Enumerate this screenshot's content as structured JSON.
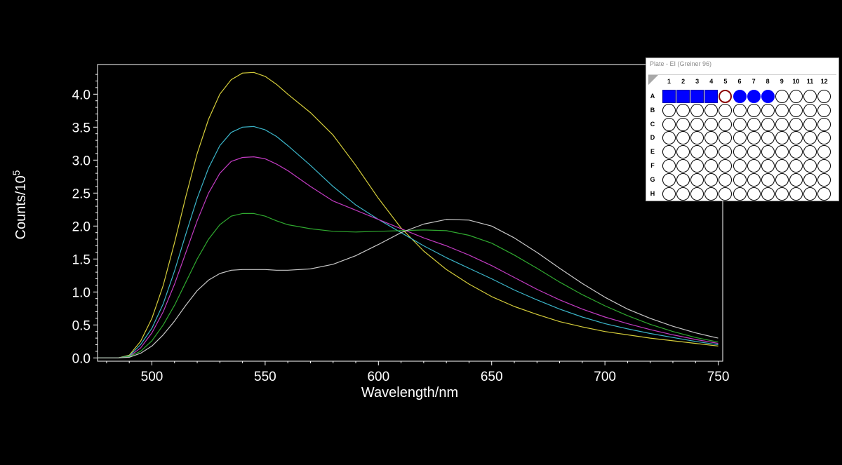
{
  "chart_data": {
    "type": "line",
    "title": "",
    "xlabel": "Wavelength/nm",
    "ylabel_base": "Counts/10",
    "ylabel_exp": "5",
    "xlim": [
      476,
      752
    ],
    "ylim": [
      -0.05,
      4.45
    ],
    "xticks": [
      500,
      550,
      600,
      650,
      700,
      750
    ],
    "yticks": [
      "0.0",
      "0.5",
      "1.0",
      "1.5",
      "2.0",
      "2.5",
      "3.0",
      "3.5",
      "4.0"
    ],
    "background": "#000000",
    "axis_color": "#ffffff",
    "grid": false,
    "series": [
      {
        "color": "#d4cc3a",
        "x": [
          480,
          485,
          490,
          495,
          500,
          505,
          510,
          515,
          520,
          525,
          530,
          535,
          540,
          545,
          550,
          555,
          560,
          570,
          580,
          590,
          600,
          610,
          620,
          630,
          640,
          650,
          660,
          670,
          680,
          690,
          700,
          710,
          720,
          730,
          740,
          750
        ],
        "y": [
          0,
          0,
          0.04,
          0.25,
          0.6,
          1.1,
          1.75,
          2.45,
          3.1,
          3.62,
          4.0,
          4.22,
          4.32,
          4.33,
          4.27,
          4.15,
          4.0,
          3.72,
          3.38,
          2.92,
          2.42,
          1.97,
          1.62,
          1.34,
          1.12,
          0.93,
          0.78,
          0.66,
          0.55,
          0.47,
          0.4,
          0.35,
          0.3,
          0.26,
          0.22,
          0.18
        ]
      },
      {
        "color": "#3bb5c9",
        "x": [
          480,
          485,
          490,
          495,
          500,
          505,
          510,
          515,
          520,
          525,
          530,
          535,
          540,
          545,
          550,
          555,
          560,
          570,
          580,
          590,
          600,
          610,
          620,
          630,
          640,
          650,
          660,
          670,
          680,
          690,
          700,
          710,
          720,
          730,
          740,
          750
        ],
        "y": [
          0,
          0,
          0.03,
          0.2,
          0.45,
          0.82,
          1.32,
          1.88,
          2.42,
          2.88,
          3.22,
          3.42,
          3.5,
          3.51,
          3.46,
          3.36,
          3.22,
          2.92,
          2.6,
          2.32,
          2.1,
          1.9,
          1.7,
          1.52,
          1.36,
          1.2,
          1.03,
          0.88,
          0.74,
          0.62,
          0.52,
          0.44,
          0.37,
          0.31,
          0.25,
          0.2
        ]
      },
      {
        "color": "#c23bc2",
        "x": [
          480,
          485,
          490,
          495,
          500,
          505,
          510,
          515,
          520,
          525,
          530,
          535,
          540,
          545,
          550,
          555,
          560,
          570,
          580,
          590,
          600,
          610,
          620,
          630,
          640,
          650,
          660,
          670,
          680,
          690,
          700,
          710,
          720,
          730,
          740,
          750
        ],
        "y": [
          0,
          0,
          0.02,
          0.15,
          0.38,
          0.7,
          1.12,
          1.6,
          2.08,
          2.5,
          2.8,
          2.98,
          3.04,
          3.05,
          3.02,
          2.94,
          2.84,
          2.6,
          2.38,
          2.24,
          2.1,
          1.96,
          1.82,
          1.7,
          1.56,
          1.4,
          1.22,
          1.04,
          0.88,
          0.74,
          0.62,
          0.52,
          0.43,
          0.35,
          0.28,
          0.22
        ]
      },
      {
        "color": "#2fa82f",
        "x": [
          480,
          485,
          490,
          495,
          500,
          505,
          510,
          515,
          520,
          525,
          530,
          535,
          540,
          545,
          550,
          555,
          560,
          570,
          580,
          590,
          600,
          610,
          620,
          630,
          640,
          650,
          660,
          670,
          680,
          690,
          700,
          710,
          720,
          730,
          740,
          750
        ],
        "y": [
          0,
          0,
          0.02,
          0.1,
          0.26,
          0.5,
          0.8,
          1.15,
          1.5,
          1.8,
          2.02,
          2.15,
          2.19,
          2.19,
          2.15,
          2.08,
          2.02,
          1.96,
          1.92,
          1.91,
          1.92,
          1.93,
          1.94,
          1.93,
          1.86,
          1.74,
          1.56,
          1.36,
          1.15,
          0.96,
          0.79,
          0.64,
          0.51,
          0.4,
          0.31,
          0.24
        ]
      },
      {
        "color": "#c8c8c8",
        "x": [
          480,
          485,
          490,
          495,
          500,
          505,
          510,
          515,
          520,
          525,
          530,
          535,
          540,
          545,
          550,
          555,
          560,
          570,
          580,
          590,
          600,
          610,
          620,
          630,
          640,
          650,
          660,
          670,
          680,
          690,
          700,
          710,
          720,
          730,
          740,
          750
        ],
        "y": [
          0,
          0,
          0.01,
          0.07,
          0.18,
          0.35,
          0.56,
          0.8,
          1.02,
          1.18,
          1.28,
          1.33,
          1.34,
          1.34,
          1.34,
          1.33,
          1.33,
          1.35,
          1.42,
          1.55,
          1.72,
          1.9,
          2.03,
          2.1,
          2.09,
          2.0,
          1.82,
          1.6,
          1.36,
          1.13,
          0.92,
          0.74,
          0.6,
          0.48,
          0.38,
          0.3
        ]
      }
    ]
  },
  "plate": {
    "title": "Plate - EI (Greiner 96)",
    "columns": [
      "1",
      "2",
      "3",
      "4",
      "5",
      "6",
      "7",
      "8",
      "9",
      "10",
      "11",
      "12"
    ],
    "rows": [
      "A",
      "B",
      "C",
      "D",
      "E",
      "F",
      "G",
      "H"
    ],
    "selected_color": "#0000ff",
    "ring_color": "#8b0000",
    "well_states": [
      [
        "square-filled",
        "square-filled",
        "square-filled",
        "square-filled",
        "ring",
        "circle-filled",
        "circle-filled",
        "circle-filled",
        "empty",
        "empty",
        "empty",
        "empty"
      ],
      [
        "empty",
        "empty",
        "empty",
        "empty",
        "empty",
        "empty",
        "empty",
        "empty",
        "empty",
        "empty",
        "empty",
        "empty"
      ],
      [
        "empty",
        "empty",
        "empty",
        "empty",
        "empty",
        "empty",
        "empty",
        "empty",
        "empty",
        "empty",
        "empty",
        "empty"
      ],
      [
        "empty",
        "empty",
        "empty",
        "empty",
        "empty",
        "empty",
        "empty",
        "empty",
        "empty",
        "empty",
        "empty",
        "empty"
      ],
      [
        "empty",
        "empty",
        "empty",
        "empty",
        "empty",
        "empty",
        "empty",
        "empty",
        "empty",
        "empty",
        "empty",
        "empty"
      ],
      [
        "empty",
        "empty",
        "empty",
        "empty",
        "empty",
        "empty",
        "empty",
        "empty",
        "empty",
        "empty",
        "empty",
        "empty"
      ],
      [
        "empty",
        "empty",
        "empty",
        "empty",
        "empty",
        "empty",
        "empty",
        "empty",
        "empty",
        "empty",
        "empty",
        "empty"
      ],
      [
        "empty",
        "empty",
        "empty",
        "empty",
        "empty",
        "empty",
        "empty",
        "empty",
        "empty",
        "empty",
        "empty",
        "empty"
      ]
    ]
  }
}
